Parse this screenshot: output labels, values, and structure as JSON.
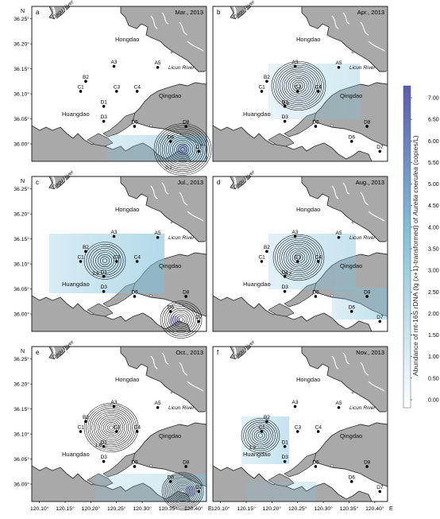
{
  "colors": {
    "land": "#a9a9a9",
    "sea": "#ffffff",
    "coast": "#333333",
    "contour": "#111111",
    "scale_low": "#ffffff",
    "scale_mid": "#7fc1d9",
    "scale_high": "#5b5bb0"
  },
  "panels": [
    {
      "letter": "a",
      "date": "Mar., 2013",
      "contour_label": "0.1"
    },
    {
      "letter": "b",
      "date": "Apr., 2013",
      "contour_label": "1.9"
    },
    {
      "letter": "c",
      "date": "Jul., 2013",
      "contour_label": "2.6"
    },
    {
      "letter": "d",
      "date": "Aug., 2013",
      "contour_label": "-0.2"
    },
    {
      "letter": "e",
      "date": "Oct., 2013",
      "contour_label": "1.6"
    },
    {
      "letter": "f",
      "date": "Nov., 2013",
      "contour_label": "1.3"
    }
  ],
  "map_labels": {
    "dagu_river": "Dagu River",
    "licun_river": "Licun River",
    "hongdao": "Hongdao",
    "qingdao": "Qingdao",
    "huangdao": "Huangdao"
  },
  "stations": [
    {
      "id": "A3",
      "lon": 120.245,
      "lat": 36.155
    },
    {
      "id": "A5",
      "lon": 120.33,
      "lat": 36.153
    },
    {
      "id": "B2",
      "lon": 120.19,
      "lat": 36.125
    },
    {
      "id": "C1",
      "lon": 120.18,
      "lat": 36.105
    },
    {
      "id": "C3",
      "lon": 120.25,
      "lat": 36.105
    },
    {
      "id": "C4",
      "lon": 120.29,
      "lat": 36.105
    },
    {
      "id": "D1",
      "lon": 120.225,
      "lat": 36.075
    },
    {
      "id": "D3",
      "lon": 120.225,
      "lat": 36.045
    },
    {
      "id": "D5",
      "lon": 120.285,
      "lat": 36.035
    },
    {
      "id": "D6",
      "lon": 120.355,
      "lat": 36.005
    },
    {
      "id": "D8",
      "lon": 120.385,
      "lat": 36.035
    },
    {
      "id": "D7",
      "lon": 120.41,
      "lat": 35.985
    }
  ],
  "axes": {
    "lat_ticks": [
      "36.25°",
      "36.20°",
      "36.15°",
      "36.10°",
      "36.05°",
      "36.00°"
    ],
    "lat_letter": "N",
    "lon_ticks": [
      "120.10°",
      "120.15°",
      "120.20°",
      "120.25°",
      "120.30°",
      "120.35°",
      "120.40°"
    ],
    "lon_letter": "E"
  },
  "colorbar": {
    "ticks": [
      "7.00",
      "6.50",
      "6.00",
      "5.50",
      "5.00",
      "4.50",
      "4.00",
      "3.50",
      "3.00",
      "2.50",
      "2.00",
      "1.50",
      "1.00",
      "0.50",
      "0.00"
    ],
    "title_pre": "Abundance of mt-16S rDNA (lg (x+1)-transformed) of ",
    "title_species": "Aurelia coerulea",
    "title_post": " (copies/L)"
  }
}
